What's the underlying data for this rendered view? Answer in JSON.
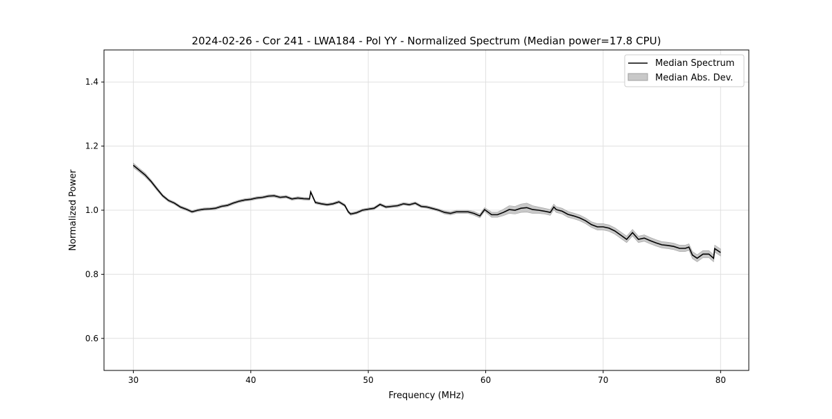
{
  "chart_data": {
    "type": "line",
    "title": "2024-02-26 - Cor 241 - LWA184 - Pol YY - Normalized Spectrum (Median power=17.8 CPU)",
    "xlabel": "Frequency (MHz)",
    "ylabel": "Normalized Power",
    "xlim": [
      27.5,
      82.4
    ],
    "ylim": [
      0.5,
      1.5
    ],
    "xticks": [
      30,
      40,
      50,
      60,
      70,
      80
    ],
    "yticks": [
      0.6,
      0.8,
      1.0,
      1.2,
      1.4
    ],
    "ytick_labels": [
      "0.6",
      "0.8",
      "1.0",
      "1.2",
      "1.4"
    ],
    "grid": true,
    "legend_position": "top-right",
    "legend": [
      "Median Spectrum",
      "Median Abs. Dev."
    ],
    "colors": {
      "line": "#000000",
      "band": "#c8c8c8",
      "band_edge": "#a0a0a0"
    },
    "x": [
      30,
      30.5,
      31,
      31.5,
      32,
      32.5,
      33,
      33.5,
      34,
      34.5,
      35,
      35.5,
      36,
      36.5,
      37,
      37.5,
      38,
      38.5,
      39,
      39.5,
      40,
      40.5,
      41,
      41.5,
      42,
      42.5,
      43,
      43.5,
      44,
      44.5,
      45,
      45.1,
      45.5,
      46,
      46.5,
      47,
      47.5,
      48,
      48.3,
      48.5,
      49,
      49.5,
      50,
      50.5,
      51,
      51.5,
      52,
      52.5,
      53,
      53.5,
      54,
      54.5,
      55,
      55.5,
      56,
      56.5,
      57,
      57.5,
      58,
      58.5,
      59,
      59.5,
      59.9,
      60.5,
      61,
      61.5,
      62,
      62.5,
      63,
      63.5,
      64,
      64.5,
      65,
      65.5,
      65.8,
      66,
      66.5,
      67,
      67.5,
      68,
      68.5,
      69,
      69.5,
      70,
      70.5,
      71,
      71.5,
      72,
      72.5,
      73,
      73.5,
      74,
      74.5,
      75,
      75.5,
      76,
      76.5,
      77,
      77.3,
      77.6,
      78,
      78.5,
      79,
      79.4,
      79.5,
      80
    ],
    "median": [
      1.14,
      1.125,
      1.11,
      1.09,
      1.067,
      1.045,
      1.03,
      1.022,
      1.01,
      1.003,
      0.995,
      1.0,
      1.003,
      1.004,
      1.006,
      1.012,
      1.015,
      1.022,
      1.028,
      1.032,
      1.034,
      1.038,
      1.04,
      1.044,
      1.045,
      1.04,
      1.042,
      1.035,
      1.038,
      1.036,
      1.035,
      1.057,
      1.024,
      1.02,
      1.017,
      1.02,
      1.026,
      1.015,
      0.995,
      0.988,
      0.992,
      1.0,
      1.003,
      1.006,
      1.018,
      1.01,
      1.012,
      1.014,
      1.02,
      1.017,
      1.022,
      1.012,
      1.01,
      1.005,
      1.0,
      0.993,
      0.99,
      0.995,
      0.995,
      0.995,
      0.99,
      0.982,
      1.002,
      0.986,
      0.986,
      0.993,
      1.002,
      1.0,
      1.006,
      1.008,
      1.002,
      1.0,
      0.997,
      0.993,
      1.01,
      1.002,
      0.997,
      0.987,
      0.982,
      0.976,
      0.967,
      0.955,
      0.948,
      0.948,
      0.944,
      0.935,
      0.922,
      0.909,
      0.93,
      0.909,
      0.913,
      0.905,
      0.898,
      0.892,
      0.89,
      0.887,
      0.881,
      0.881,
      0.885,
      0.86,
      0.85,
      0.863,
      0.863,
      0.85,
      0.88,
      0.868
    ],
    "mad": [
      0.007,
      0.006,
      0.006,
      0.005,
      0.005,
      0.004,
      0.004,
      0.004,
      0.004,
      0.004,
      0.004,
      0.004,
      0.004,
      0.004,
      0.004,
      0.004,
      0.004,
      0.004,
      0.004,
      0.004,
      0.004,
      0.004,
      0.004,
      0.004,
      0.004,
      0.004,
      0.004,
      0.004,
      0.004,
      0.004,
      0.004,
      0.004,
      0.004,
      0.004,
      0.004,
      0.004,
      0.004,
      0.004,
      0.004,
      0.004,
      0.004,
      0.004,
      0.004,
      0.004,
      0.004,
      0.004,
      0.004,
      0.004,
      0.004,
      0.004,
      0.004,
      0.004,
      0.004,
      0.004,
      0.004,
      0.005,
      0.005,
      0.005,
      0.005,
      0.005,
      0.006,
      0.006,
      0.006,
      0.008,
      0.008,
      0.01,
      0.012,
      0.012,
      0.013,
      0.014,
      0.012,
      0.01,
      0.009,
      0.009,
      0.009,
      0.009,
      0.009,
      0.009,
      0.009,
      0.009,
      0.009,
      0.009,
      0.01,
      0.01,
      0.01,
      0.01,
      0.01,
      0.01,
      0.01,
      0.01,
      0.01,
      0.01,
      0.01,
      0.01,
      0.01,
      0.01,
      0.01,
      0.01,
      0.01,
      0.011,
      0.011,
      0.011,
      0.011,
      0.011,
      0.011,
      0.011
    ]
  }
}
